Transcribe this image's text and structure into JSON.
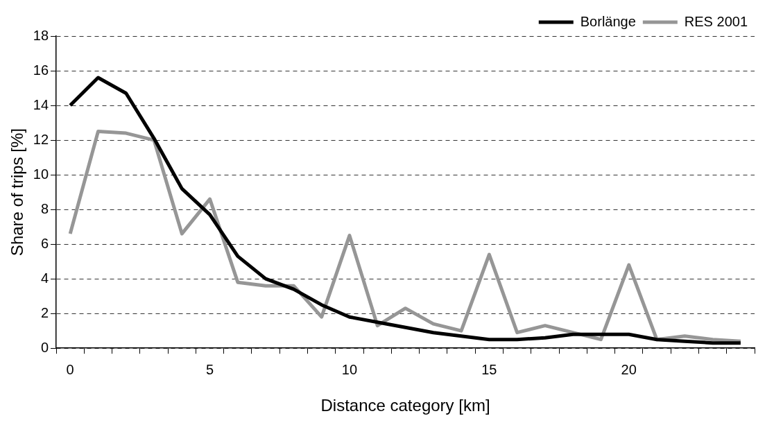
{
  "chart_data": {
    "type": "line",
    "xlabel": "Distance category [km]",
    "ylabel": "Share of trips [%]",
    "categories": [
      "0",
      null,
      null,
      null,
      null,
      "5",
      null,
      null,
      null,
      null,
      "10",
      null,
      null,
      null,
      null,
      "15",
      null,
      null,
      null,
      null,
      "20",
      null,
      null,
      null,
      null
    ],
    "series": [
      {
        "name": "Borlänge",
        "color": "#000000",
        "values": [
          14.0,
          15.6,
          14.7,
          12.1,
          9.2,
          7.7,
          5.3,
          4.0,
          3.4,
          2.5,
          1.8,
          1.5,
          1.2,
          0.9,
          0.7,
          0.5,
          0.5,
          0.6,
          0.8,
          0.8,
          0.8,
          0.5,
          0.4,
          0.3,
          0.3
        ]
      },
      {
        "name": "RES 2001",
        "color": "#969696",
        "values": [
          6.6,
          12.5,
          12.4,
          12.0,
          6.6,
          8.6,
          3.8,
          3.6,
          3.6,
          1.8,
          6.5,
          1.3,
          2.3,
          1.4,
          1.0,
          5.4,
          0.9,
          1.3,
          0.9,
          0.5,
          4.8,
          0.5,
          0.7,
          0.5,
          0.4
        ]
      }
    ],
    "ylim": [
      0,
      18
    ],
    "yticks": [
      0,
      2,
      4,
      6,
      8,
      10,
      12,
      14,
      16,
      18
    ],
    "grid": "y",
    "legend": "top right",
    "marker": "none",
    "line_style": "solid"
  }
}
